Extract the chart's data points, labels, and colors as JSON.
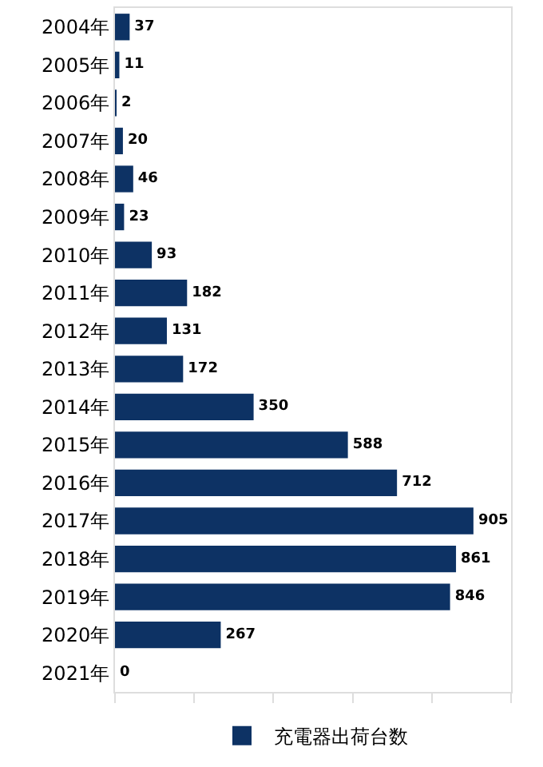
{
  "chart_data": {
    "type": "bar",
    "orientation": "horizontal",
    "categories": [
      "2004年",
      "2005年",
      "2006年",
      "2007年",
      "2008年",
      "2009年",
      "2010年",
      "2011年",
      "2012年",
      "2013年",
      "2014年",
      "2015年",
      "2016年",
      "2017年",
      "2018年",
      "2019年",
      "2020年",
      "2021年"
    ],
    "series": [
      {
        "name": "充電器出荷台数",
        "color": "#0d3264",
        "values": [
          37,
          11,
          2,
          20,
          46,
          23,
          93,
          182,
          131,
          172,
          350,
          588,
          712,
          905,
          861,
          846,
          267,
          0
        ]
      }
    ],
    "xlim": [
      0,
      1000
    ],
    "xticks": [
      {
        "value": 0,
        "label": null
      },
      {
        "value": 200,
        "label": null
      },
      {
        "value": 400,
        "label": null
      },
      {
        "value": 600,
        "label": null
      },
      {
        "value": 800,
        "label": null
      },
      {
        "value": 1000,
        "label": null
      }
    ],
    "data_labels": true,
    "legend": "bottom",
    "grid": false
  }
}
